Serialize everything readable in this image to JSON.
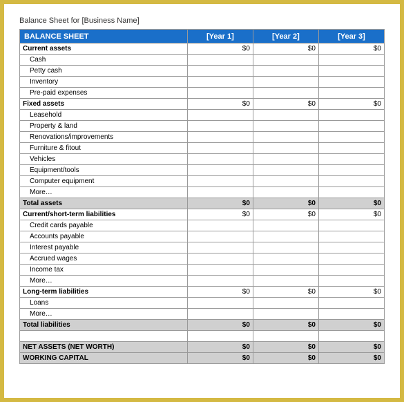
{
  "title": "Balance Sheet for [Business Name]",
  "header": {
    "label": "BALANCE SHEET",
    "col1": "[Year 1]",
    "col2": "[Year 2]",
    "col3": "[Year 3]"
  },
  "colors": {
    "frame_border": "#d4b943",
    "header_bg": "#1a6fc9",
    "header_fg": "#ffffff",
    "total_bg": "#d0d0d0",
    "grid": "#999999",
    "text": "#333333"
  },
  "sections": [
    {
      "label": "Current assets",
      "values": [
        "$0",
        "$0",
        "$0"
      ],
      "items": [
        {
          "label": "Cash",
          "values": [
            "",
            "",
            ""
          ]
        },
        {
          "label": "Petty cash",
          "values": [
            "",
            "",
            ""
          ]
        },
        {
          "label": "Inventory",
          "values": [
            "",
            "",
            ""
          ]
        },
        {
          "label": "Pre-paid expenses",
          "values": [
            "",
            "",
            ""
          ]
        }
      ]
    },
    {
      "label": "Fixed assets",
      "values": [
        "$0",
        "$0",
        "$0"
      ],
      "items": [
        {
          "label": "Leasehold",
          "values": [
            "",
            "",
            ""
          ]
        },
        {
          "label": "Property & land",
          "values": [
            "",
            "",
            ""
          ]
        },
        {
          "label": "Renovations/improvements",
          "values": [
            "",
            "",
            ""
          ]
        },
        {
          "label": "Furniture & fitout",
          "values": [
            "",
            "",
            ""
          ]
        },
        {
          "label": "Vehicles",
          "values": [
            "",
            "",
            ""
          ]
        },
        {
          "label": "Equipment/tools",
          "values": [
            "",
            "",
            ""
          ]
        },
        {
          "label": "Computer equipment",
          "values": [
            "",
            "",
            ""
          ]
        },
        {
          "label": "More…",
          "values": [
            "",
            "",
            ""
          ]
        }
      ]
    }
  ],
  "total_assets": {
    "label": "Total assets",
    "values": [
      "$0",
      "$0",
      "$0"
    ]
  },
  "liab_sections": [
    {
      "label": "Current/short-term liabilities",
      "values": [
        "$0",
        "$0",
        "$0"
      ],
      "items": [
        {
          "label": "Credit cards payable",
          "values": [
            "",
            "",
            ""
          ]
        },
        {
          "label": "Accounts payable",
          "values": [
            "",
            "",
            ""
          ]
        },
        {
          "label": "Interest payable",
          "values": [
            "",
            "",
            ""
          ]
        },
        {
          "label": "Accrued wages",
          "values": [
            "",
            "",
            ""
          ]
        },
        {
          "label": "Income tax",
          "values": [
            "",
            "",
            ""
          ]
        },
        {
          "label": "More…",
          "values": [
            "",
            "",
            ""
          ]
        }
      ]
    },
    {
      "label": "Long-term liabilities",
      "values": [
        "$0",
        "$0",
        "$0"
      ],
      "items": [
        {
          "label": "Loans",
          "values": [
            "",
            "",
            ""
          ]
        },
        {
          "label": "More…",
          "values": [
            "",
            "",
            ""
          ]
        }
      ]
    }
  ],
  "total_liab": {
    "label": "Total liabilities",
    "values": [
      "$0",
      "$0",
      "$0"
    ]
  },
  "net_assets": {
    "label": "NET ASSETS (NET WORTH)",
    "values": [
      "$0",
      "$0",
      "$0"
    ]
  },
  "working_capital": {
    "label": "WORKING CAPITAL",
    "values": [
      "$0",
      "$0",
      "$0"
    ]
  },
  "watermark": ""
}
